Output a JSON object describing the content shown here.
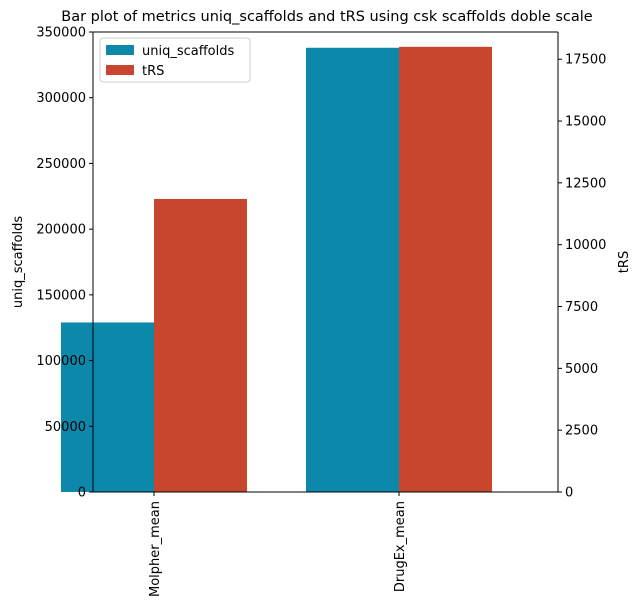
{
  "chart_data": {
    "type": "bar",
    "title": "Bar plot of metrics uniq_scaffolds and tRS using csk scaffolds doble scale",
    "categories": [
      "Molpher_mean",
      "DrugEx_mean"
    ],
    "series": [
      {
        "name": "uniq_scaffolds",
        "axis": "left",
        "color": "#0d88aa",
        "values": [
          129000,
          338000
        ]
      },
      {
        "name": "tRS",
        "axis": "right",
        "color": "#c8462e",
        "values": [
          11850,
          18000
        ]
      }
    ],
    "ylabel": "uniq_scaffolds",
    "ylabel_right": "tRS",
    "ylim": [
      0,
      350000
    ],
    "ylim_right": [
      0,
      18600
    ],
    "yticks": [
      0,
      50000,
      100000,
      150000,
      200000,
      250000,
      300000,
      350000
    ],
    "yticks_right": [
      0,
      2500,
      5000,
      7500,
      10000,
      12500,
      15000,
      17500
    ],
    "legend": "top-left",
    "grid": false
  }
}
